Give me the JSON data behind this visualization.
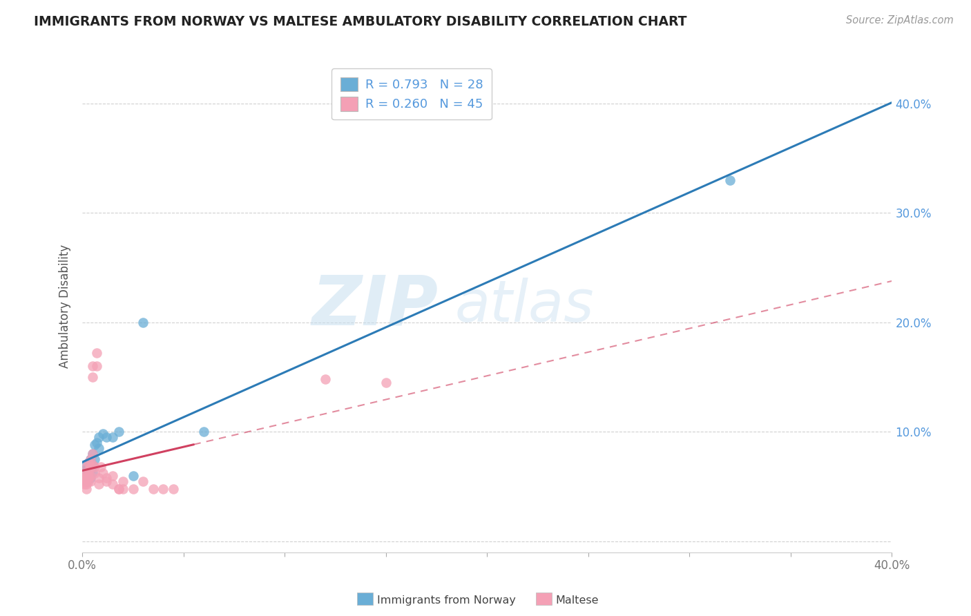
{
  "title": "IMMIGRANTS FROM NORWAY VS MALTESE AMBULATORY DISABILITY CORRELATION CHART",
  "source": "Source: ZipAtlas.com",
  "ylabel": "Ambulatory Disability",
  "xlim": [
    0.0,
    0.4
  ],
  "ylim": [
    -0.01,
    0.44
  ],
  "x_tick_positions": [
    0.0,
    0.05,
    0.1,
    0.15,
    0.2,
    0.25,
    0.3,
    0.35,
    0.4
  ],
  "x_tick_labels": [
    "0.0%",
    "",
    "",
    "",
    "",
    "",
    "",
    "",
    "40.0%"
  ],
  "y_tick_positions": [
    0.0,
    0.1,
    0.2,
    0.3,
    0.4
  ],
  "y_tick_labels": [
    "",
    "10.0%",
    "20.0%",
    "30.0%",
    "40.0%"
  ],
  "legend_R": [
    0.793,
    0.26
  ],
  "legend_N": [
    28,
    45
  ],
  "legend_labels": [
    "Immigrants from Norway",
    "Maltese"
  ],
  "blue_color": "#6aaed6",
  "pink_color": "#f4a0b5",
  "blue_line_color": "#2c7bb6",
  "pink_line_color": "#d04060",
  "watermark_zip": "ZIP",
  "watermark_atlas": "atlas",
  "background_color": "#ffffff",
  "grid_color": "#d0d0d0",
  "norway_points": [
    [
      0.001,
      0.06
    ],
    [
      0.001,
      0.065
    ],
    [
      0.001,
      0.058
    ],
    [
      0.002,
      0.07
    ],
    [
      0.002,
      0.062
    ],
    [
      0.002,
      0.055
    ],
    [
      0.003,
      0.068
    ],
    [
      0.003,
      0.06
    ],
    [
      0.003,
      0.072
    ],
    [
      0.004,
      0.075
    ],
    [
      0.004,
      0.065
    ],
    [
      0.004,
      0.058
    ],
    [
      0.005,
      0.08
    ],
    [
      0.005,
      0.07
    ],
    [
      0.005,
      0.063
    ],
    [
      0.006,
      0.088
    ],
    [
      0.006,
      0.075
    ],
    [
      0.007,
      0.09
    ],
    [
      0.008,
      0.085
    ],
    [
      0.008,
      0.095
    ],
    [
      0.01,
      0.098
    ],
    [
      0.012,
      0.095
    ],
    [
      0.015,
      0.095
    ],
    [
      0.018,
      0.1
    ],
    [
      0.025,
      0.06
    ],
    [
      0.03,
      0.2
    ],
    [
      0.06,
      0.1
    ],
    [
      0.32,
      0.33
    ]
  ],
  "maltese_points": [
    [
      0.001,
      0.06
    ],
    [
      0.001,
      0.058
    ],
    [
      0.001,
      0.055
    ],
    [
      0.001,
      0.052
    ],
    [
      0.002,
      0.068
    ],
    [
      0.002,
      0.062
    ],
    [
      0.002,
      0.058
    ],
    [
      0.002,
      0.052
    ],
    [
      0.002,
      0.048
    ],
    [
      0.003,
      0.072
    ],
    [
      0.003,
      0.065
    ],
    [
      0.003,
      0.06
    ],
    [
      0.003,
      0.058
    ],
    [
      0.003,
      0.055
    ],
    [
      0.004,
      0.075
    ],
    [
      0.004,
      0.068
    ],
    [
      0.004,
      0.06
    ],
    [
      0.004,
      0.055
    ],
    [
      0.005,
      0.08
    ],
    [
      0.005,
      0.07
    ],
    [
      0.005,
      0.16
    ],
    [
      0.005,
      0.15
    ],
    [
      0.006,
      0.068
    ],
    [
      0.006,
      0.062
    ],
    [
      0.007,
      0.172
    ],
    [
      0.007,
      0.16
    ],
    [
      0.008,
      0.058
    ],
    [
      0.008,
      0.052
    ],
    [
      0.009,
      0.068
    ],
    [
      0.01,
      0.062
    ],
    [
      0.012,
      0.058
    ],
    [
      0.012,
      0.055
    ],
    [
      0.015,
      0.06
    ],
    [
      0.015,
      0.052
    ],
    [
      0.018,
      0.048
    ],
    [
      0.018,
      0.048
    ],
    [
      0.02,
      0.055
    ],
    [
      0.02,
      0.048
    ],
    [
      0.025,
      0.048
    ],
    [
      0.03,
      0.055
    ],
    [
      0.035,
      0.048
    ],
    [
      0.04,
      0.048
    ],
    [
      0.045,
      0.048
    ],
    [
      0.12,
      0.148
    ],
    [
      0.15,
      0.145
    ]
  ]
}
